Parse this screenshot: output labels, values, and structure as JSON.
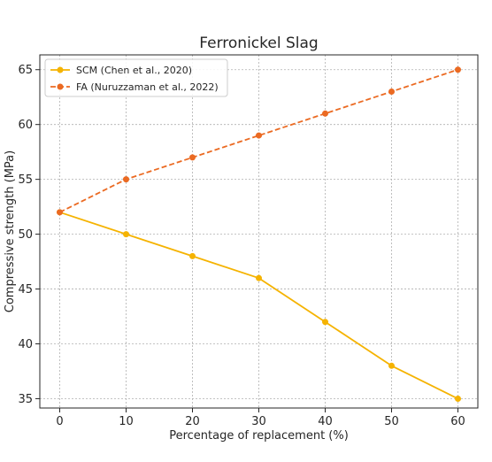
{
  "chart_data": {
    "type": "line",
    "title": "Ferronickel Slag",
    "xlabel": "Percentage of replacement (%)",
    "ylabel": "Compressive strength (MPa)",
    "x": [
      0,
      10,
      20,
      30,
      40,
      50,
      60
    ],
    "xticks": [
      "0",
      "10",
      "20",
      "30",
      "40",
      "50",
      "60"
    ],
    "yticks": [
      "35",
      "40",
      "45",
      "50",
      "55",
      "60",
      "65"
    ],
    "xlim": [
      -3,
      63
    ],
    "ylim": [
      34.15,
      66.35
    ],
    "grid": true,
    "legend_position": "upper-left",
    "series": [
      {
        "name": "SCM (Chen et al., 2020)",
        "values": [
          52,
          50,
          48,
          46,
          42,
          38,
          35
        ],
        "color": "#f5b301",
        "line_style": "solid",
        "marker": "circle"
      },
      {
        "name": "FA (Nuruzzaman et al., 2022)",
        "values": [
          52,
          55,
          57,
          59,
          61,
          63,
          65
        ],
        "color": "#eb6a22",
        "line_style": "dashed",
        "marker": "circle"
      }
    ]
  }
}
